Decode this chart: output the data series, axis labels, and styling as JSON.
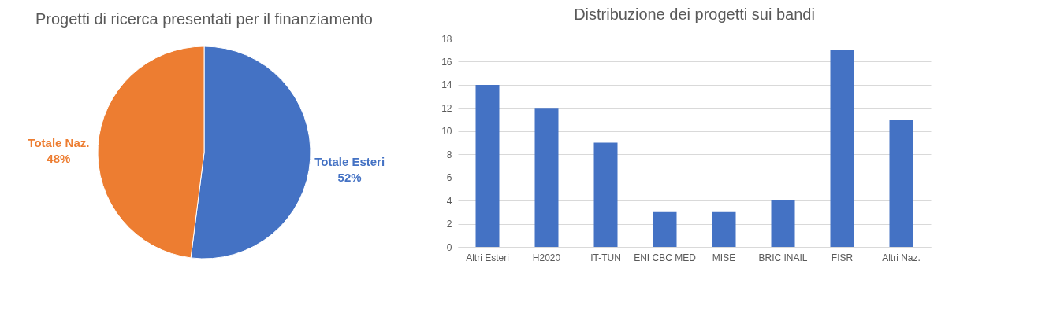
{
  "chart_data": [
    {
      "type": "pie",
      "title": "Progetti di ricerca presentati per il finanziamento",
      "categories": [
        "Totale Esteri",
        "Totale Naz."
      ],
      "values": [
        52,
        48
      ],
      "value_labels": [
        "52%",
        "48%"
      ],
      "colors": [
        "#4472c4",
        "#ed7d31"
      ],
      "legend": false
    },
    {
      "type": "bar",
      "title": "Distribuzione dei progetti sui bandi",
      "categories": [
        "Altri Esteri",
        "H2020",
        "IT-TUN",
        "ENI CBC MED",
        "MISE",
        "BRIC INAIL",
        "FISR",
        "Altri Naz."
      ],
      "values": [
        14,
        12,
        9,
        3,
        3,
        4,
        17,
        11
      ],
      "color": "#4472c4",
      "ylim": [
        0,
        18
      ],
      "yticks": [
        0,
        2,
        4,
        6,
        8,
        10,
        12,
        14,
        16,
        18
      ],
      "grid": "y"
    }
  ]
}
